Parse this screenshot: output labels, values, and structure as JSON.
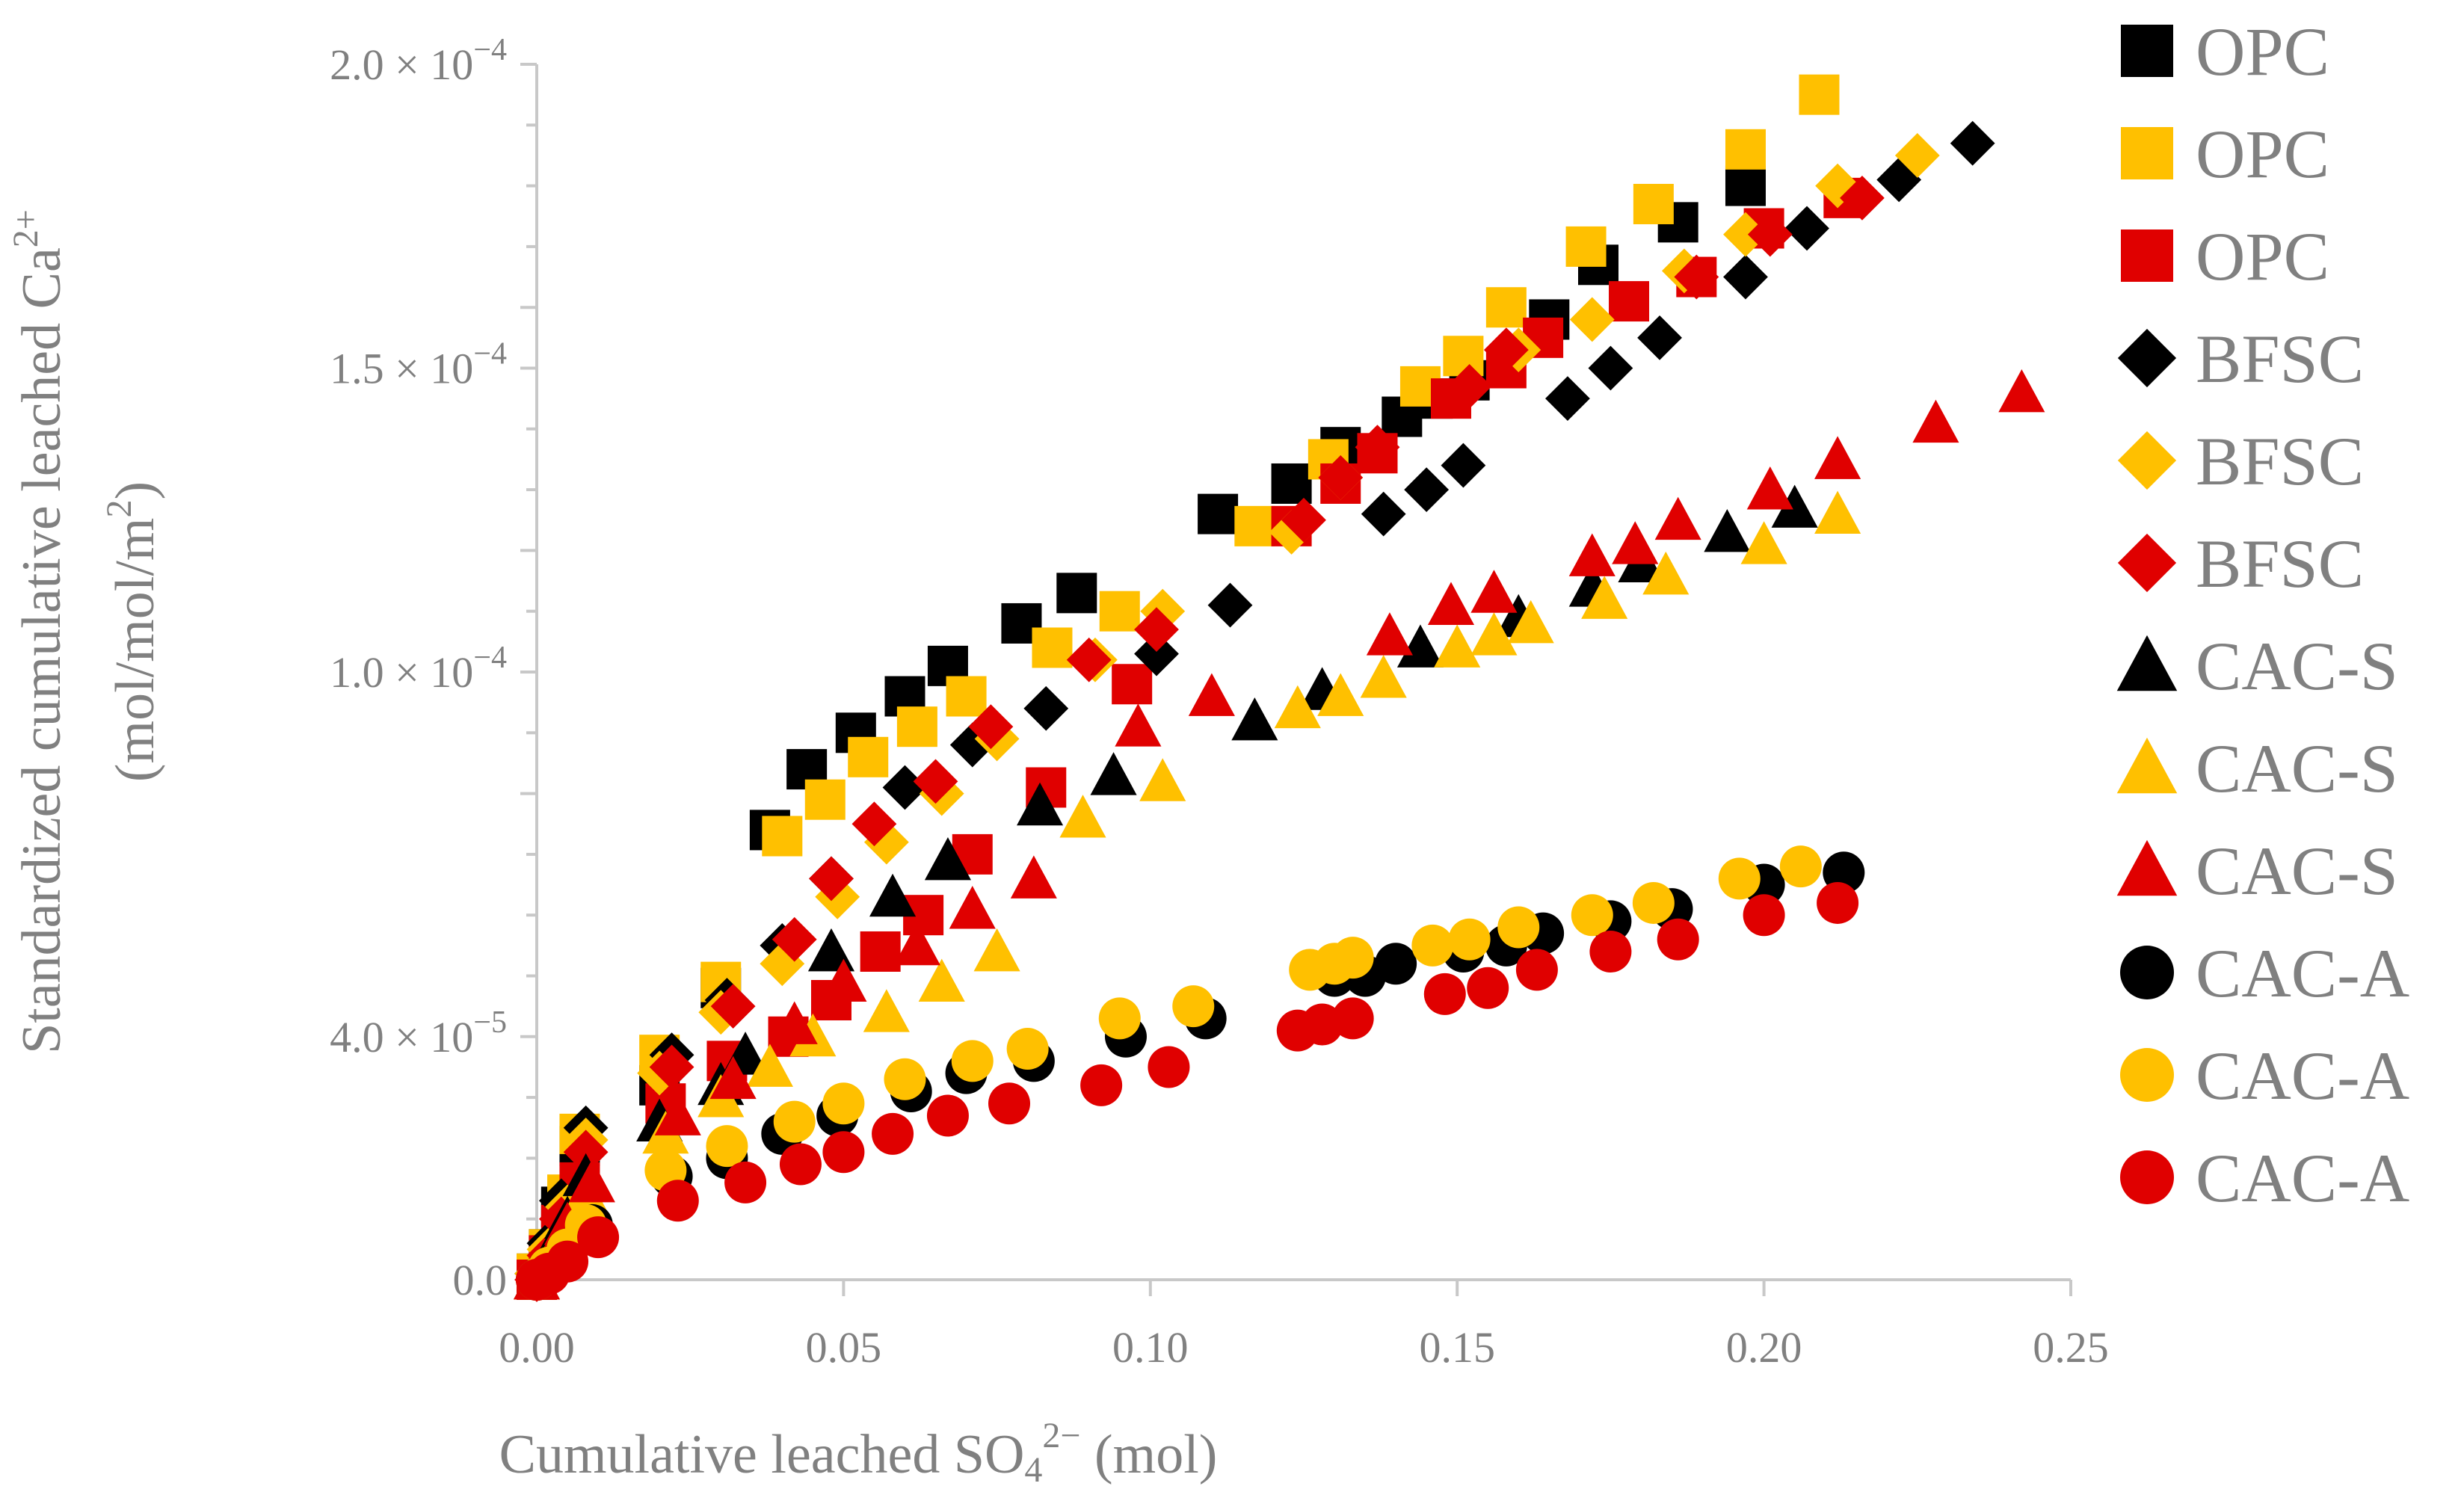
{
  "chart_data": {
    "type": "scatter",
    "title": "",
    "xlabel": "Cumulative leached SO",
    "xlabel_sub": "4",
    "xlabel_sup": "2−",
    "xlabel_tail": " (mol)",
    "ylabel_line1": "Standardized cumulative leached Ca",
    "ylabel_line1_sup": "2+",
    "ylabel_line2": "(mol/mol/m",
    "ylabel_line2_sup": "2",
    "ylabel_line2_tail": ")",
    "xlim": [
      0,
      0.25
    ],
    "ylim": [
      0,
      0.0002
    ],
    "x_ticks": [
      {
        "value": 0,
        "label": "0.00"
      },
      {
        "value": 0.05,
        "label": "0.05"
      },
      {
        "value": 0.1,
        "label": "0.10"
      },
      {
        "value": 0.15,
        "label": "0.15"
      },
      {
        "value": 0.2,
        "label": "0.20"
      },
      {
        "value": 0.25,
        "label": "0.25"
      }
    ],
    "y_ticks": [
      {
        "value": 0,
        "mant": "0.0",
        "exp": ""
      },
      {
        "value": 4e-05,
        "mant": "4.0 × 10",
        "exp": "−5"
      },
      {
        "value": 0.0001,
        "mant": "1.0 × 10",
        "exp": "−4"
      },
      {
        "value": 0.00015,
        "mant": "1.5 × 10",
        "exp": "−4"
      },
      {
        "value": 0.0002,
        "mant": "2.0 × 10",
        "exp": "−4"
      }
    ],
    "legend_position": "right",
    "series": [
      {
        "name": "OPC",
        "marker": "square",
        "color": "#000000",
        "points": [
          [
            0,
            1e-06
          ],
          [
            0.002,
            5e-06
          ],
          [
            0.004,
            1.2e-05
          ],
          [
            0.007,
            2.2e-05
          ],
          [
            0.02,
            3.2e-05
          ],
          [
            0.03,
            4.8e-05
          ],
          [
            0.038,
            7.4e-05
          ],
          [
            0.044,
            8.4e-05
          ],
          [
            0.052,
            9e-05
          ],
          [
            0.06,
            9.6e-05
          ],
          [
            0.067,
            0.000101
          ],
          [
            0.079,
            0.000108
          ],
          [
            0.088,
            0.000113
          ],
          [
            0.111,
            0.000126
          ],
          [
            0.123,
            0.000131
          ],
          [
            0.131,
            0.000137
          ],
          [
            0.141,
            0.000142
          ],
          [
            0.146,
            0.000145
          ],
          [
            0.152,
            0.000148
          ],
          [
            0.165,
            0.000158
          ],
          [
            0.173,
            0.000167
          ],
          [
            0.186,
            0.000174
          ],
          [
            0.197,
            0.00018
          ]
        ]
      },
      {
        "name": "OPC",
        "marker": "square",
        "color": "#FFC000",
        "points": [
          [
            0,
            1e-06
          ],
          [
            0.002,
            5e-06
          ],
          [
            0.005,
            1.4e-05
          ],
          [
            0.007,
            2.4e-05
          ],
          [
            0.02,
            3.7e-05
          ],
          [
            0.03,
            4.9e-05
          ],
          [
            0.04,
            7.3e-05
          ],
          [
            0.047,
            7.9e-05
          ],
          [
            0.054,
            8.6e-05
          ],
          [
            0.062,
            9.1e-05
          ],
          [
            0.07,
            9.6e-05
          ],
          [
            0.084,
            0.000104
          ],
          [
            0.095,
            0.00011
          ],
          [
            0.117,
            0.000124
          ],
          [
            0.129,
            0.000135
          ],
          [
            0.144,
            0.000147
          ],
          [
            0.151,
            0.000152
          ],
          [
            0.158,
            0.00016
          ],
          [
            0.171,
            0.00017
          ],
          [
            0.182,
            0.000177
          ],
          [
            0.197,
            0.000186
          ],
          [
            0.209,
            0.000195
          ]
        ]
      },
      {
        "name": "OPC",
        "marker": "square",
        "color": "#E00000",
        "points": [
          [
            0,
            0
          ],
          [
            0.002,
            4e-06
          ],
          [
            0.004,
            9e-06
          ],
          [
            0.007,
            1.6e-05
          ],
          [
            0.021,
            2.9e-05
          ],
          [
            0.031,
            3.6e-05
          ],
          [
            0.041,
            4e-05
          ],
          [
            0.048,
            4.6e-05
          ],
          [
            0.056,
            5.4e-05
          ],
          [
            0.063,
            6e-05
          ],
          [
            0.071,
            7e-05
          ],
          [
            0.083,
            8.1e-05
          ],
          [
            0.097,
            9.8e-05
          ],
          [
            0.123,
            0.000124
          ],
          [
            0.131,
            0.000131
          ],
          [
            0.137,
            0.000136
          ],
          [
            0.149,
            0.000145
          ],
          [
            0.158,
            0.00015
          ],
          [
            0.164,
            0.000155
          ],
          [
            0.178,
            0.000161
          ],
          [
            0.189,
            0.000165
          ],
          [
            0.2,
            0.000173
          ],
          [
            0.213,
            0.000178
          ]
        ]
      },
      {
        "name": "BFSC",
        "marker": "diamond",
        "color": "#000000",
        "points": [
          [
            0,
            1e-06
          ],
          [
            0.002,
            6e-06
          ],
          [
            0.004,
            1.3e-05
          ],
          [
            0.008,
            2.5e-05
          ],
          [
            0.022,
            3.7e-05
          ],
          [
            0.031,
            4.6e-05
          ],
          [
            0.04,
            5.5e-05
          ],
          [
            0.048,
            6.6e-05
          ],
          [
            0.06,
            8.1e-05
          ],
          [
            0.071,
            8.8e-05
          ],
          [
            0.083,
            9.4e-05
          ],
          [
            0.101,
            0.000103
          ],
          [
            0.113,
            0.000111
          ],
          [
            0.138,
            0.000126
          ],
          [
            0.145,
            0.00013
          ],
          [
            0.151,
            0.000134
          ],
          [
            0.168,
            0.000145
          ],
          [
            0.175,
            0.00015
          ],
          [
            0.183,
            0.000155
          ],
          [
            0.197,
            0.000165
          ],
          [
            0.207,
            0.000173
          ],
          [
            0.222,
            0.000181
          ],
          [
            0.234,
            0.000187
          ]
        ]
      },
      {
        "name": "BFSC",
        "marker": "diamond",
        "color": "#FFC000",
        "points": [
          [
            0,
            1e-06
          ],
          [
            0.002,
            5e-06
          ],
          [
            0.005,
            1.2e-05
          ],
          [
            0.008,
            2.3e-05
          ],
          [
            0.02,
            3.4e-05
          ],
          [
            0.03,
            4.4e-05
          ],
          [
            0.04,
            5.2e-05
          ],
          [
            0.049,
            6.3e-05
          ],
          [
            0.057,
            7.2e-05
          ],
          [
            0.066,
            8e-05
          ],
          [
            0.075,
            8.9e-05
          ],
          [
            0.091,
            0.000102
          ],
          [
            0.102,
            0.00011
          ],
          [
            0.123,
            0.000123
          ],
          [
            0.131,
            0.000132
          ],
          [
            0.16,
            0.000153
          ],
          [
            0.172,
            0.000158
          ],
          [
            0.187,
            0.000166
          ],
          [
            0.197,
            0.000172
          ],
          [
            0.212,
            0.00018
          ],
          [
            0.225,
            0.000185
          ]
        ]
      },
      {
        "name": "BFSC",
        "marker": "diamond",
        "color": "#E00000",
        "points": [
          [
            0,
            0
          ],
          [
            0.002,
            4e-06
          ],
          [
            0.004,
            1e-05
          ],
          [
            0.008,
            2.1e-05
          ],
          [
            0.022,
            3.5e-05
          ],
          [
            0.032,
            4.5e-05
          ],
          [
            0.042,
            5.6e-05
          ],
          [
            0.048,
            6.6e-05
          ],
          [
            0.055,
            7.5e-05
          ],
          [
            0.065,
            8.2e-05
          ],
          [
            0.074,
            9.1e-05
          ],
          [
            0.09,
            0.000102
          ],
          [
            0.101,
            0.000107
          ],
          [
            0.125,
            0.000125
          ],
          [
            0.131,
            0.000132
          ],
          [
            0.137,
            0.000137
          ],
          [
            0.152,
            0.000147
          ],
          [
            0.158,
            0.000153
          ],
          [
            0.189,
            0.000165
          ],
          [
            0.201,
            0.000172
          ],
          [
            0.216,
            0.000178
          ]
        ]
      },
      {
        "name": "CAC-S",
        "marker": "triangle",
        "color": "#000000",
        "points": [
          [
            0,
            0
          ],
          [
            0.002,
            4e-06
          ],
          [
            0.005,
            1e-05
          ],
          [
            0.008,
            1.7e-05
          ],
          [
            0.02,
            2.6e-05
          ],
          [
            0.03,
            3.2e-05
          ],
          [
            0.034,
            3.7e-05
          ],
          [
            0.048,
            5.4e-05
          ],
          [
            0.058,
            6.3e-05
          ],
          [
            0.067,
            6.9e-05
          ],
          [
            0.082,
            7.8e-05
          ],
          [
            0.094,
            8.3e-05
          ],
          [
            0.117,
            9.2e-05
          ],
          [
            0.128,
            9.7e-05
          ],
          [
            0.144,
            0.000104
          ],
          [
            0.16,
            0.000109
          ],
          [
            0.172,
            0.000114
          ],
          [
            0.18,
            0.000118
          ],
          [
            0.194,
            0.000123
          ],
          [
            0.205,
            0.000127
          ]
        ]
      },
      {
        "name": "CAC-S",
        "marker": "triangle",
        "color": "#FFC000",
        "points": [
          [
            0,
            0
          ],
          [
            0.002,
            3e-06
          ],
          [
            0.005,
            8e-06
          ],
          [
            0.008,
            1.4e-05
          ],
          [
            0.021,
            2.4e-05
          ],
          [
            0.03,
            3e-05
          ],
          [
            0.038,
            3.5e-05
          ],
          [
            0.045,
            4e-05
          ],
          [
            0.057,
            4.4e-05
          ],
          [
            0.066,
            4.9e-05
          ],
          [
            0.075,
            5.4e-05
          ],
          [
            0.089,
            7.6e-05
          ],
          [
            0.102,
            8.2e-05
          ],
          [
            0.124,
            9.4e-05
          ],
          [
            0.131,
            9.6e-05
          ],
          [
            0.138,
            9.9e-05
          ],
          [
            0.15,
            0.000104
          ],
          [
            0.156,
            0.000106
          ],
          [
            0.162,
            0.000108
          ],
          [
            0.174,
            0.000112
          ],
          [
            0.184,
            0.000116
          ],
          [
            0.2,
            0.000121
          ],
          [
            0.212,
            0.000126
          ]
        ]
      },
      {
        "name": "CAC-S",
        "marker": "triangle",
        "color": "#E00000",
        "points": [
          [
            0,
            0
          ],
          [
            0.002,
            3e-06
          ],
          [
            0.005,
            9e-06
          ],
          [
            0.009,
            1.6e-05
          ],
          [
            0.023,
            2.7e-05
          ],
          [
            0.032,
            3.3e-05
          ],
          [
            0.042,
            4.2e-05
          ],
          [
            0.05,
            4.9e-05
          ],
          [
            0.062,
            5.5e-05
          ],
          [
            0.071,
            6.1e-05
          ],
          [
            0.081,
            6.6e-05
          ],
          [
            0.098,
            9.1e-05
          ],
          [
            0.11,
            9.6e-05
          ],
          [
            0.139,
            0.000106
          ],
          [
            0.149,
            0.000111
          ],
          [
            0.156,
            0.000113
          ],
          [
            0.172,
            0.000119
          ],
          [
            0.179,
            0.000121
          ],
          [
            0.186,
            0.000125
          ],
          [
            0.201,
            0.00013
          ],
          [
            0.212,
            0.000135
          ],
          [
            0.228,
            0.000141
          ],
          [
            0.242,
            0.000146
          ]
        ]
      },
      {
        "name": "CAC-A",
        "marker": "circle",
        "color": "#000000",
        "points": [
          [
            0,
            0
          ],
          [
            0.002,
            2e-06
          ],
          [
            0.005,
            5e-06
          ],
          [
            0.009,
            9e-06
          ],
          [
            0.022,
            1.7e-05
          ],
          [
            0.031,
            2e-05
          ],
          [
            0.04,
            2.4e-05
          ],
          [
            0.049,
            2.7e-05
          ],
          [
            0.061,
            3.1e-05
          ],
          [
            0.07,
            3.4e-05
          ],
          [
            0.081,
            3.6e-05
          ],
          [
            0.096,
            4e-05
          ],
          [
            0.109,
            4.3e-05
          ],
          [
            0.13,
            5e-05
          ],
          [
            0.135,
            5e-05
          ],
          [
            0.14,
            5.2e-05
          ],
          [
            0.151,
            5.4e-05
          ],
          [
            0.158,
            5.5e-05
          ],
          [
            0.164,
            5.7e-05
          ],
          [
            0.175,
            5.9e-05
          ],
          [
            0.185,
            6.1e-05
          ],
          [
            0.2,
            6.5e-05
          ],
          [
            0.213,
            6.7e-05
          ]
        ]
      },
      {
        "name": "CAC-A",
        "marker": "circle",
        "color": "#FFC000",
        "points": [
          [
            0,
            0
          ],
          [
            0.002,
            2e-06
          ],
          [
            0.005,
            5e-06
          ],
          [
            0.008,
            9e-06
          ],
          [
            0.021,
            1.8e-05
          ],
          [
            0.031,
            2.2e-05
          ],
          [
            0.042,
            2.6e-05
          ],
          [
            0.05,
            2.9e-05
          ],
          [
            0.06,
            3.3e-05
          ],
          [
            0.071,
            3.6e-05
          ],
          [
            0.08,
            3.8e-05
          ],
          [
            0.095,
            4.3e-05
          ],
          [
            0.107,
            4.5e-05
          ],
          [
            0.126,
            5.1e-05
          ],
          [
            0.13,
            5.2e-05
          ],
          [
            0.133,
            5.3e-05
          ],
          [
            0.146,
            5.5e-05
          ],
          [
            0.152,
            5.6e-05
          ],
          [
            0.16,
            5.8e-05
          ],
          [
            0.172,
            6e-05
          ],
          [
            0.182,
            6.2e-05
          ],
          [
            0.196,
            6.6e-05
          ],
          [
            0.206,
            6.8e-05
          ]
        ]
      },
      {
        "name": "CAC-A",
        "marker": "circle",
        "color": "#E00000",
        "points": [
          [
            0,
            0
          ],
          [
            0.002,
            1e-06
          ],
          [
            0.005,
            3e-06
          ],
          [
            0.01,
            7e-06
          ],
          [
            0.023,
            1.3e-05
          ],
          [
            0.034,
            1.6e-05
          ],
          [
            0.043,
            1.9e-05
          ],
          [
            0.05,
            2.1e-05
          ],
          [
            0.058,
            2.4e-05
          ],
          [
            0.067,
            2.7e-05
          ],
          [
            0.077,
            2.9e-05
          ],
          [
            0.092,
            3.2e-05
          ],
          [
            0.103,
            3.5e-05
          ],
          [
            0.124,
            4.1e-05
          ],
          [
            0.128,
            4.2e-05
          ],
          [
            0.133,
            4.3e-05
          ],
          [
            0.148,
            4.7e-05
          ],
          [
            0.155,
            4.8e-05
          ],
          [
            0.163,
            5.1e-05
          ],
          [
            0.175,
            5.4e-05
          ],
          [
            0.186,
            5.6e-05
          ],
          [
            0.2,
            6e-05
          ],
          [
            0.212,
            6.2e-05
          ]
        ]
      }
    ]
  }
}
